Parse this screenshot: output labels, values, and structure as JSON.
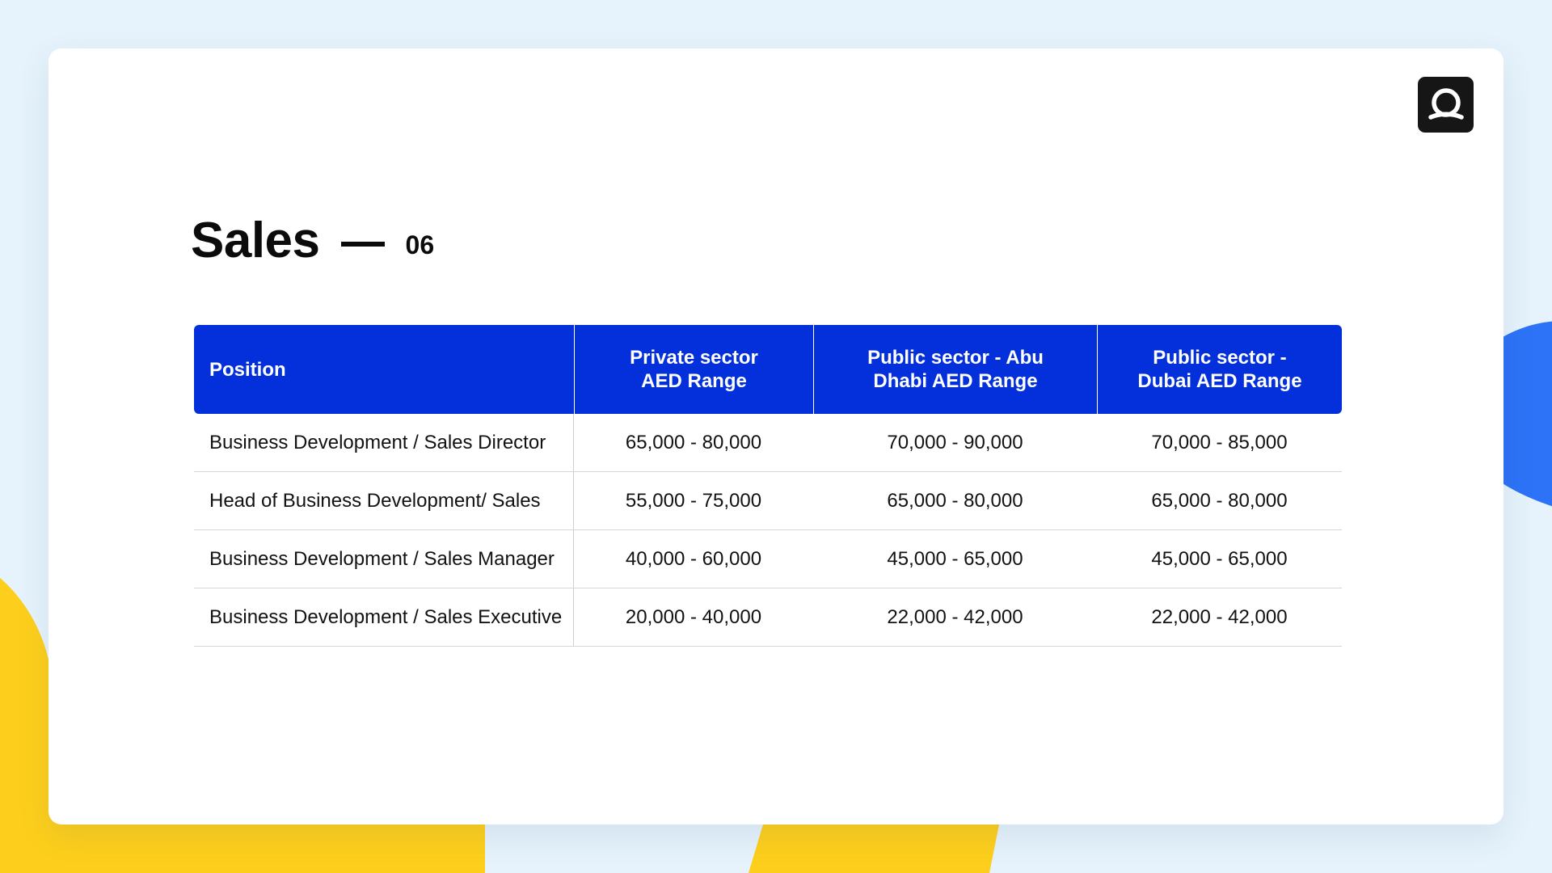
{
  "colors": {
    "page_background": "#e6f3fc",
    "header_blue": "#0430dc",
    "accent_yellow": "#fdcf1c",
    "accent_blue": "#2d73f7",
    "logo_background": "#161616"
  },
  "logo": {
    "icon": "q-logo-icon"
  },
  "heading": {
    "title": "Sales",
    "number": "06"
  },
  "table": {
    "headers": [
      "Position",
      "Private sector\nAED Range",
      "Public sector - Abu\nDhabi AED Range",
      "Public sector -\nDubai AED Range"
    ],
    "rows": [
      {
        "position": "Business Development / Sales Director",
        "private": "65,000 - 80,000",
        "abu_dhabi": "70,000 - 90,000",
        "dubai": "70,000 - 85,000"
      },
      {
        "position": "Head of Business Development/ Sales",
        "private": "55,000 - 75,000",
        "abu_dhabi": "65,000 - 80,000",
        "dubai": "65,000 - 80,000"
      },
      {
        "position": "Business Development / Sales Manager",
        "private": "40,000 - 60,000",
        "abu_dhabi": "45,000 - 65,000",
        "dubai": "45,000 - 65,000"
      },
      {
        "position": "Business Development / Sales Executive",
        "private": "20,000 - 40,000",
        "abu_dhabi": "22,000 - 42,000",
        "dubai": "22,000 - 42,000"
      }
    ]
  }
}
